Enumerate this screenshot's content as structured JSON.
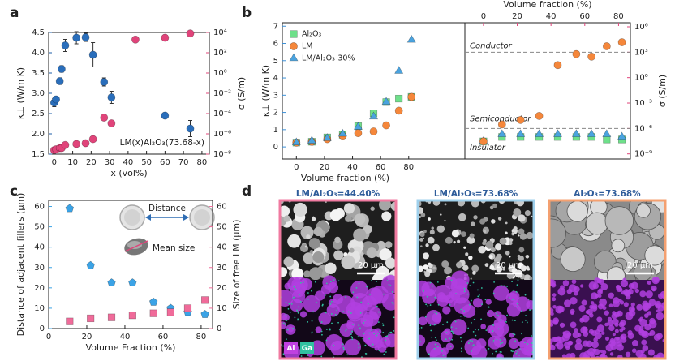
{
  "panel_labels": [
    "a",
    "b",
    "c",
    "d"
  ],
  "chart_data": [
    {
      "type": "scatter",
      "x_label": "x (vol%)",
      "y_label": "κ⊥ (W/m K)",
      "y2_label": "σ (S/m)",
      "annotation": "LM(x)Al₂O₃(73.68-x)",
      "xlim": [
        -3,
        84
      ],
      "xticks": [
        0,
        10,
        20,
        30,
        40,
        50,
        60,
        70,
        80
      ],
      "ylim": [
        1.5,
        4.5
      ],
      "yticks": [
        1.5,
        {
          "value": 2,
          "label": "2.0"
        },
        2.5,
        {
          "value": 3,
          "label": "3.0"
        },
        3.5,
        {
          "value": 4,
          "label": "4.0"
        },
        4.5
      ],
      "y_color": "#1f5fa8",
      "y2_color": "#e0447a",
      "y2scale": "log",
      "y2lim": [
        1e-08,
        10000
      ],
      "y2ticks": [
        {
          "value": 1e-08,
          "label": "10⁻⁸"
        },
        {
          "value": 1e-06,
          "label": "10⁻⁶"
        },
        {
          "value": 0.0001,
          "label": "10⁻⁴"
        },
        {
          "value": 0.01,
          "label": "10⁻²"
        },
        {
          "value": 1,
          "label": "10⁰"
        },
        {
          "value": 100,
          "label": "10²"
        },
        {
          "value": 10000,
          "label": "10⁴"
        }
      ],
      "series": [
        {
          "color": "#2a6ebb",
          "marker": "circle",
          "x": [
            0,
            1,
            3,
            4,
            6,
            12,
            17,
            21,
            27,
            31,
            60,
            73.68
          ],
          "values": [
            2.77,
            2.85,
            3.3,
            3.6,
            4.18,
            4.37,
            4.38,
            3.95,
            3.28,
            2.9,
            2.45,
            2.13
          ],
          "errors": [
            0.1,
            0.05,
            0.08,
            0.08,
            0.15,
            0.15,
            0.1,
            0.3,
            0.1,
            0.15,
            0.03,
            0.2
          ]
        },
        {
          "color": "#e0447a",
          "marker": "circle",
          "axis": "y2",
          "x": [
            0,
            1,
            3,
            4,
            6,
            12,
            17,
            21,
            27,
            31,
            44,
            60,
            73.68
          ],
          "values": [
            2.5e-08,
            3e-08,
            4e-08,
            4e-08,
            8e-08,
            1e-07,
            1.2e-07,
            3e-07,
            4e-05,
            1.1e-05,
            2000,
            3000,
            8000
          ]
        }
      ]
    },
    {
      "type": "scatter",
      "x_label": "Volume fraction (%)",
      "y_label": "κ⊥ (W/m K)",
      "legend": "upper left",
      "x": [
        0,
        11,
        22,
        33,
        44,
        55,
        64,
        73,
        82
      ],
      "xlim": [
        -10,
        120
      ],
      "xticks": [
        0,
        20,
        40,
        60,
        80
      ],
      "ylim": [
        -0.7,
        7.2
      ],
      "yticks": [
        0,
        1,
        2,
        3,
        4,
        5,
        6,
        7
      ],
      "y_color": "#3b8fd6",
      "series": [
        {
          "name": "Al₂O₃",
          "color": "#6ee08a",
          "marker": "square",
          "values": [
            0.25,
            0.3,
            0.55,
            0.7,
            1.2,
            1.95,
            2.6,
            2.8,
            2.9
          ]
        },
        {
          "name": "LM",
          "color": "#f5873b",
          "marker": "circle",
          "values": [
            0.25,
            0.3,
            0.45,
            0.65,
            0.8,
            0.9,
            1.25,
            2.1,
            2.9
          ]
        },
        {
          "name": "LM/Al₂O₃-30%",
          "color": "#4aa3df",
          "marker": "triangle",
          "values": [
            0.25,
            0.35,
            0.5,
            0.75,
            1.15,
            1.75,
            2.6,
            4.4,
            6.2
          ]
        }
      ]
    },
    {
      "type": "scatter",
      "x_label": "Volume fraction (%)",
      "x_axis_position": "top",
      "y_axis_position": "right",
      "y_label": "σ (S/m)",
      "yscale": "log",
      "ylim": [
        2.5e-10,
        3000000
      ],
      "yticks": [
        {
          "value": 1e-09,
          "label": "10⁻⁹"
        },
        {
          "value": 1e-06,
          "label": "10⁻⁶"
        },
        {
          "value": 0.001,
          "label": "10⁻³"
        },
        {
          "value": 1,
          "label": "10⁰"
        },
        {
          "value": 1000,
          "label": "10³"
        },
        {
          "value": 1000000,
          "label": "10⁶"
        }
      ],
      "x_color": "#e0447a",
      "y_color": "#e0447a",
      "x": [
        0,
        11,
        22,
        33,
        44,
        55,
        64,
        73,
        82
      ],
      "xlim": [
        -11,
        87
      ],
      "xticks": [
        0,
        20,
        40,
        60,
        80
      ],
      "thresholds": [
        1000,
        1e-06
      ],
      "region_labels": [
        {
          "text": "Conductor",
          "color": "#f5873b"
        },
        {
          "text": "Semiconductor",
          "color": "#3b8fd6"
        },
        {
          "text": "Insulator",
          "color": "#4cc070"
        }
      ],
      "series": [
        {
          "color": "#6ee08a",
          "marker": "square",
          "values": [
            3e-08,
            1e-07,
            1e-07,
            1e-07,
            1e-07,
            1e-07,
            1e-07,
            5e-08,
            5e-08
          ]
        },
        {
          "color": "#4aa3df",
          "marker": "triangle",
          "values": [
            3e-08,
            2e-07,
            2e-07,
            2e-07,
            2e-07,
            2e-07,
            2e-07,
            2e-07,
            1e-07
          ]
        },
        {
          "color": "#f5873b",
          "marker": "circle",
          "values": [
            3e-08,
            3e-06,
            1e-05,
            3e-05,
            30,
            600,
            300,
            5000,
            15000
          ]
        }
      ]
    },
    {
      "type": "scatter",
      "x_label": "Volume Fraction (%)",
      "y_label": "Distance of adjacent fillers (μm)",
      "y2_label": "Size of free LM (μm)",
      "legend": "annotated",
      "x": [
        11,
        22,
        33,
        44,
        55,
        64,
        73,
        82
      ],
      "xlim": [
        0,
        86
      ],
      "xticks": [
        0,
        20,
        40,
        60,
        80
      ],
      "ylim": [
        0,
        63
      ],
      "yticks": [
        0,
        10,
        20,
        30,
        40,
        50,
        60
      ],
      "y_color": "#3ba3e6",
      "y2lim": [
        0,
        63
      ],
      "y2ticks": [
        0,
        10,
        20,
        30,
        40,
        50,
        60
      ],
      "y2_color": "#f06b9a",
      "series": [
        {
          "name": "Distance",
          "color": "#3ba3e6",
          "marker": "pentagon",
          "values": [
            59,
            31,
            22.5,
            22.5,
            13,
            10,
            8,
            7
          ]
        },
        {
          "name": "Mean size",
          "color": "#f06b9a",
          "marker": "square",
          "axis": "y2",
          "values": [
            3.5,
            5,
            5.5,
            6.5,
            7.5,
            8,
            10,
            14
          ]
        }
      ]
    }
  ],
  "images": [
    {
      "title": "LM/Al₂O₃=44.40%",
      "scale_bar": "20 μm",
      "border": "#f07aa0"
    },
    {
      "title": "LM/Al₂O₃=73.68%",
      "scale_bar": "20 μm",
      "border": "#9fd0ec"
    },
    {
      "title": "Al₂O₃=73.68%",
      "scale_bar": "20 μm",
      "border": "#f4a070"
    }
  ],
  "element_labels": [
    {
      "text": "Al",
      "color": "#c040e0"
    },
    {
      "text": "Ga",
      "color": "#30c0a0"
    }
  ]
}
